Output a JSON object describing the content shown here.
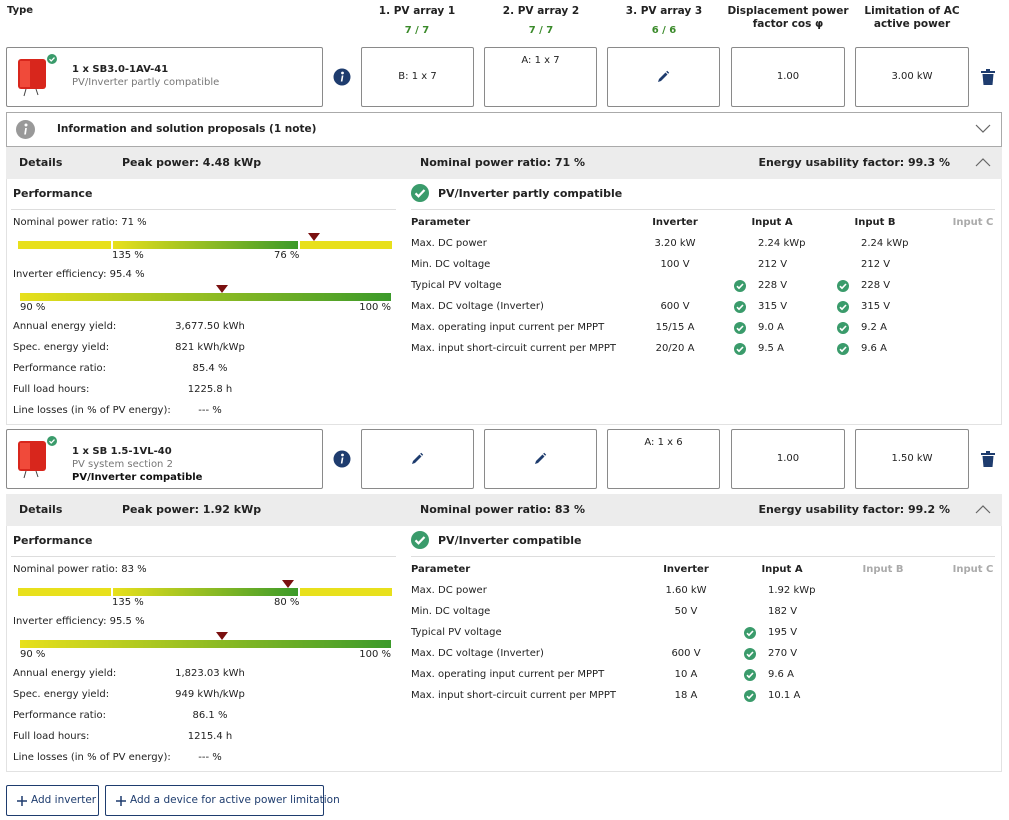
{
  "header": {
    "columns": [
      "Type",
      "1. PV array 1",
      "2. PV array 2",
      "3. PV array 3",
      "Displacement power factor cos φ",
      "Limitation of AC active power"
    ],
    "counts": [
      "7 / 7",
      "7 / 7",
      "6 / 6"
    ]
  },
  "inverters": [
    {
      "name": "1 x SB3.0-1AV-41",
      "lines": [
        "PV/Inverter partly compatible"
      ],
      "arrays": [
        "B: 1 x 7",
        "A: 1 x 7",
        null
      ],
      "cos_phi": "1.00",
      "ac_limit": "3.00 kW",
      "note": "Information and solution proposals (1 note)",
      "details": {
        "label": "Details",
        "peak_power": "Peak power: 4.48 kWp",
        "nominal_ratio": "Nominal power ratio: 71 %",
        "usability": "Energy usability factor: 99.3 %"
      },
      "performance": {
        "title": "Performance",
        "nominal_label": "Nominal power ratio: 71 %",
        "nominal_scale": [
          "135 %",
          "76 %"
        ],
        "efficiency_label": "Inverter efficiency: 95.4 %",
        "efficiency_scale": [
          "90 %",
          "100 %"
        ],
        "stats": [
          [
            "Annual energy yield:",
            "3,677.50 kWh"
          ],
          [
            "Spec. energy yield:",
            "821 kWh/kWp"
          ],
          [
            "Performance ratio:",
            "85.4 %"
          ],
          [
            "Full load hours:",
            "1225.8 h"
          ],
          [
            "Line losses (in % of PV energy):",
            "--- %"
          ]
        ]
      },
      "compatibility": {
        "title": "PV/Inverter partly compatible",
        "columns": [
          "Parameter",
          "Inverter",
          "Input A",
          "Input B",
          "Input C"
        ],
        "rows": [
          {
            "cells": [
              "Max. DC power",
              "3.20 kW",
              "2.24 kWp",
              "2.24 kWp"
            ],
            "checked": false
          },
          {
            "cells": [
              "Min. DC voltage",
              "100 V",
              "212 V",
              "212 V"
            ],
            "checked": false
          },
          {
            "cells": [
              "Typical PV voltage",
              null,
              "228 V",
              "228 V"
            ],
            "checked": true
          },
          {
            "cells": [
              "Max. DC voltage (Inverter)",
              "600 V",
              "315 V",
              "315 V"
            ],
            "checked": true
          },
          {
            "cells": [
              "Max. operating input current per MPPT",
              "15/15 A",
              "9.0 A",
              "9.2 A"
            ],
            "checked": true
          },
          {
            "cells": [
              "Max. input short-circuit current per MPPT",
              "20/20 A",
              "9.5 A",
              "9.6 A"
            ],
            "checked": true
          }
        ]
      }
    },
    {
      "name": "1 x SB 1.5-1VL-40",
      "lines": [
        "PV system section 2",
        "PV/Inverter compatible"
      ],
      "arrays": [
        null,
        null,
        "A: 1 x 6"
      ],
      "cos_phi": "1.00",
      "ac_limit": "1.50 kW",
      "details": {
        "label": "Details",
        "peak_power": "Peak power: 1.92 kWp",
        "nominal_ratio": "Nominal power ratio: 83 %",
        "usability": "Energy usability factor: 99.2 %"
      },
      "performance": {
        "title": "Performance",
        "nominal_label": "Nominal power ratio: 83 %",
        "nominal_scale": [
          "135 %",
          "80 %"
        ],
        "efficiency_label": "Inverter efficiency: 95.5 %",
        "efficiency_scale": [
          "90 %",
          "100 %"
        ],
        "stats": [
          [
            "Annual energy yield:",
            "1,823.03 kWh"
          ],
          [
            "Spec. energy yield:",
            "949 kWh/kWp"
          ],
          [
            "Performance ratio:",
            "86.1 %"
          ],
          [
            "Full load hours:",
            "1215.4 h"
          ],
          [
            "Line losses (in % of PV energy):",
            "--- %"
          ]
        ]
      },
      "compatibility": {
        "title": "PV/Inverter compatible",
        "columns": [
          "Parameter",
          "Inverter",
          "Input A",
          "Input B",
          "Input C"
        ],
        "rows": [
          {
            "cells": [
              "Max. DC power",
              "1.60 kW",
              "1.92 kWp"
            ],
            "checked": false
          },
          {
            "cells": [
              "Min. DC voltage",
              "50 V",
              "182 V"
            ],
            "checked": false
          },
          {
            "cells": [
              "Typical PV voltage",
              null,
              "195 V"
            ],
            "checked": true
          },
          {
            "cells": [
              "Max. DC voltage (Inverter)",
              "600 V",
              "270 V"
            ],
            "checked": true
          },
          {
            "cells": [
              "Max. operating input current per MPPT",
              "10 A",
              "9.6 A"
            ],
            "checked": true
          },
          {
            "cells": [
              "Max. input short-circuit current per MPPT",
              "18 A",
              "10.1 A"
            ],
            "checked": true
          }
        ]
      }
    }
  ],
  "buttons": [
    "Add inverter",
    "Add a device for active power limitation"
  ]
}
